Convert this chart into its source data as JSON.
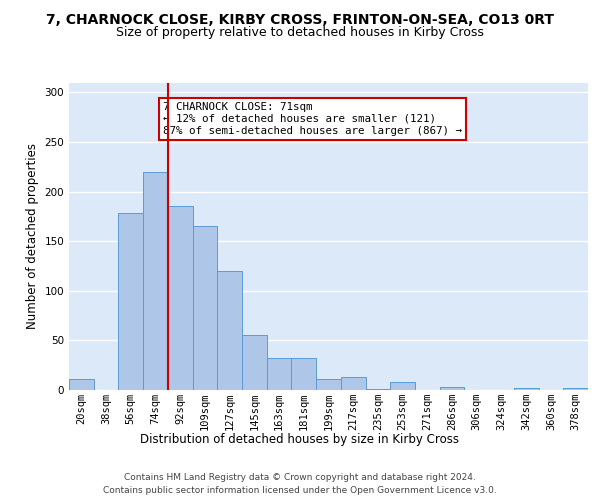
{
  "title_line1": "7, CHARNOCK CLOSE, KIRBY CROSS, FRINTON-ON-SEA, CO13 0RT",
  "title_line2": "Size of property relative to detached houses in Kirby Cross",
  "xlabel": "Distribution of detached houses by size in Kirby Cross",
  "ylabel": "Number of detached properties",
  "footer_line1": "Contains HM Land Registry data © Crown copyright and database right 2024.",
  "footer_line2": "Contains public sector information licensed under the Open Government Licence v3.0.",
  "categories": [
    "20sqm",
    "38sqm",
    "56sqm",
    "74sqm",
    "92sqm",
    "109sqm",
    "127sqm",
    "145sqm",
    "163sqm",
    "181sqm",
    "199sqm",
    "217sqm",
    "235sqm",
    "253sqm",
    "271sqm",
    "286sqm",
    "306sqm",
    "324sqm",
    "342sqm",
    "360sqm",
    "378sqm"
  ],
  "values": [
    11,
    0,
    178,
    220,
    185,
    165,
    120,
    55,
    32,
    32,
    11,
    13,
    1,
    8,
    0,
    3,
    0,
    0,
    2,
    0,
    2
  ],
  "bar_color": "#aec6e8",
  "bar_edge_color": "#5b9bd5",
  "vline_x_index": 3.5,
  "vline_color": "#cc0000",
  "annotation_text": "7 CHARNOCK CLOSE: 71sqm\n← 12% of detached houses are smaller (121)\n87% of semi-detached houses are larger (867) →",
  "annotation_box_color": "#ffffff",
  "annotation_box_edge": "#cc0000",
  "ylim": [
    0,
    310
  ],
  "yticks": [
    0,
    50,
    100,
    150,
    200,
    250,
    300
  ],
  "bg_color": "#dce9f8",
  "grid_color": "#ffffff",
  "title_fontsize": 10,
  "subtitle_fontsize": 9,
  "tick_fontsize": 7.5
}
